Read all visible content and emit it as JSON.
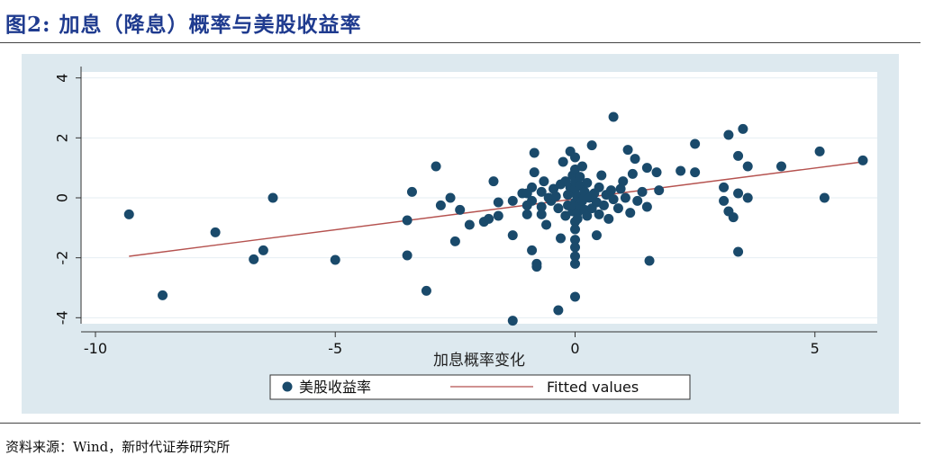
{
  "figure": {
    "title": "图2:  加息（降息）概率与美股收益率",
    "source": "资料来源：Wind，新时代证券研究所"
  },
  "colors": {
    "title": "#1f3b8f",
    "panel_background": "#dde9ef",
    "plot_background": "#ffffff",
    "marker": "#1a4a6b",
    "fit_line": "#b5524f",
    "grid": "#e6eef2"
  },
  "chart_data": {
    "type": "scatter",
    "xlabel": "加息概率变化",
    "ylabel": "",
    "xlim": [
      -10.3,
      6.3
    ],
    "ylim": [
      -4.2,
      4.2
    ],
    "x_ticks": [
      -10,
      -5,
      0,
      5
    ],
    "x_tick_labels": [
      "-10",
      "-5",
      "0",
      "5"
    ],
    "y_ticks": [
      -4,
      -2,
      0,
      2,
      4
    ],
    "y_tick_labels": [
      "-4",
      "-2",
      "0",
      "2",
      "4"
    ],
    "grid": true,
    "legend_position": "bottom",
    "series": [
      {
        "name": "美股收益率",
        "kind": "scatter",
        "points": [
          [
            -9.3,
            -0.55
          ],
          [
            -8.6,
            -3.25
          ],
          [
            -7.5,
            -1.15
          ],
          [
            -6.7,
            -2.05
          ],
          [
            -6.5,
            -1.75
          ],
          [
            -6.3,
            0.0
          ],
          [
            -5.0,
            -2.07
          ],
          [
            -3.5,
            -1.92
          ],
          [
            -3.5,
            -0.75
          ],
          [
            -3.4,
            0.2
          ],
          [
            -3.1,
            -3.1
          ],
          [
            -2.9,
            1.05
          ],
          [
            -2.8,
            -0.25
          ],
          [
            -2.6,
            0.0
          ],
          [
            -2.5,
            -1.45
          ],
          [
            -2.4,
            -0.4
          ],
          [
            -2.2,
            -0.9
          ],
          [
            -1.9,
            -0.8
          ],
          [
            -1.8,
            -0.7
          ],
          [
            -1.7,
            0.55
          ],
          [
            -1.6,
            -0.6
          ],
          [
            -1.3,
            -1.25
          ],
          [
            -1.3,
            -0.1
          ],
          [
            -1.1,
            0.15
          ],
          [
            -1.0,
            -0.25
          ],
          [
            -1.0,
            -0.55
          ],
          [
            -1.0,
            0.15
          ],
          [
            -0.9,
            -0.1
          ],
          [
            -0.9,
            -1.75
          ],
          [
            -0.9,
            0.35
          ],
          [
            -0.85,
            0.85
          ],
          [
            -0.85,
            1.5
          ],
          [
            -0.8,
            -2.2
          ],
          [
            -0.8,
            -2.3
          ],
          [
            -0.7,
            -0.3
          ],
          [
            -0.7,
            -0.55
          ],
          [
            -0.7,
            0.2
          ],
          [
            -0.65,
            0.55
          ],
          [
            -0.55,
            0.0
          ],
          [
            -0.5,
            -0.1
          ],
          [
            -0.45,
            0.3
          ],
          [
            -0.4,
            0.05
          ],
          [
            -0.35,
            -0.35
          ],
          [
            -0.3,
            0.45
          ],
          [
            -0.25,
            1.2
          ],
          [
            -0.2,
            -0.6
          ],
          [
            -0.2,
            0.55
          ],
          [
            -0.15,
            -0.25
          ],
          [
            -0.15,
            0.1
          ],
          [
            -0.1,
            0.35
          ],
          [
            -0.1,
            1.55
          ],
          [
            -0.05,
            -0.45
          ],
          [
            -0.05,
            0.75
          ],
          [
            0.0,
            -0.15
          ],
          [
            0.0,
            -0.3
          ],
          [
            0.0,
            0.15
          ],
          [
            0.0,
            0.3
          ],
          [
            0.0,
            0.55
          ],
          [
            0.0,
            0.95
          ],
          [
            0.0,
            1.35
          ],
          [
            0.0,
            -0.8
          ],
          [
            0.0,
            -1.05
          ],
          [
            0.0,
            -1.4
          ],
          [
            0.0,
            -1.65
          ],
          [
            0.0,
            -1.95
          ],
          [
            0.0,
            -2.2
          ],
          [
            0.0,
            -3.3
          ],
          [
            0.05,
            -0.5
          ],
          [
            0.05,
            -0.7
          ],
          [
            0.05,
            0.05
          ],
          [
            0.1,
            0.4
          ],
          [
            0.1,
            -0.25
          ],
          [
            0.1,
            0.7
          ],
          [
            0.15,
            1.05
          ],
          [
            0.15,
            -0.1
          ],
          [
            0.2,
            -0.4
          ],
          [
            0.2,
            0.2
          ],
          [
            0.25,
            -0.6
          ],
          [
            0.25,
            0.5
          ],
          [
            0.3,
            0.0
          ],
          [
            0.35,
            1.75
          ],
          [
            0.35,
            -0.35
          ],
          [
            0.4,
            0.15
          ],
          [
            0.45,
            -0.15
          ],
          [
            0.5,
            0.35
          ],
          [
            0.5,
            -0.55
          ],
          [
            0.55,
            0.75
          ],
          [
            0.6,
            -0.25
          ],
          [
            0.65,
            0.1
          ],
          [
            0.7,
            -0.7
          ],
          [
            0.75,
            0.25
          ],
          [
            0.8,
            -0.05
          ],
          [
            0.8,
            2.7
          ],
          [
            0.9,
            -0.35
          ],
          [
            0.95,
            0.3
          ],
          [
            1.0,
            0.55
          ],
          [
            1.05,
            0.0
          ],
          [
            1.1,
            1.6
          ],
          [
            1.15,
            -0.5
          ],
          [
            1.2,
            0.8
          ],
          [
            1.25,
            1.3
          ],
          [
            1.3,
            -0.1
          ],
          [
            1.4,
            0.2
          ],
          [
            1.5,
            -0.3
          ],
          [
            1.5,
            1.0
          ],
          [
            1.55,
            -2.1
          ],
          [
            1.7,
            0.85
          ],
          [
            1.75,
            0.25
          ],
          [
            2.2,
            0.9
          ],
          [
            2.5,
            1.8
          ],
          [
            2.5,
            0.85
          ],
          [
            3.1,
            0.35
          ],
          [
            3.1,
            -0.1
          ],
          [
            3.2,
            -0.45
          ],
          [
            3.2,
            2.1
          ],
          [
            3.3,
            -0.65
          ],
          [
            3.4,
            1.4
          ],
          [
            3.4,
            0.15
          ],
          [
            3.4,
            -1.8
          ],
          [
            3.5,
            2.3
          ],
          [
            3.6,
            1.05
          ],
          [
            3.6,
            0.0
          ],
          [
            4.3,
            1.05
          ],
          [
            5.1,
            1.55
          ],
          [
            5.2,
            0.0
          ],
          [
            6.0,
            1.25
          ],
          [
            -1.6,
            -0.15
          ],
          [
            -0.6,
            -0.9
          ],
          [
            -0.3,
            -1.35
          ],
          [
            0.45,
            -1.25
          ],
          [
            -0.35,
            -3.75
          ],
          [
            -1.3,
            -4.1
          ]
        ]
      },
      {
        "name": "Fitted values",
        "kind": "line",
        "points": [
          [
            -9.3,
            -1.95
          ],
          [
            6.0,
            1.2
          ]
        ]
      }
    ]
  }
}
